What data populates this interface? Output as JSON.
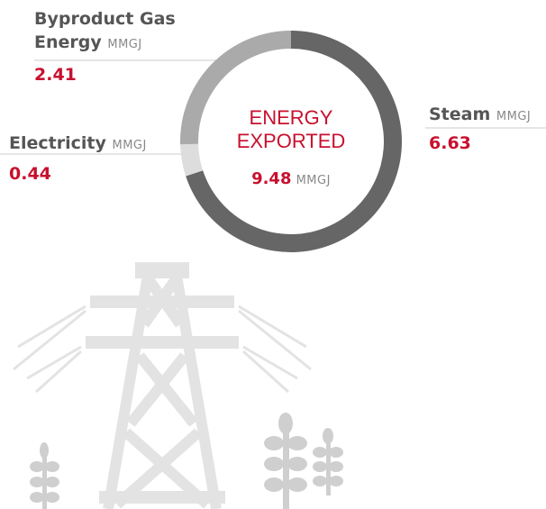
{
  "chart_data": {
    "type": "donut",
    "title": "ENERGY EXPORTED",
    "unit": "MMGJ",
    "total": 9.48,
    "categories": [
      "Steam",
      "Electricity",
      "Byproduct Gas Energy"
    ],
    "values": [
      6.63,
      0.44,
      2.41
    ],
    "colors": [
      "#666666",
      "#dddddd",
      "#aaaaaa"
    ]
  }
}
